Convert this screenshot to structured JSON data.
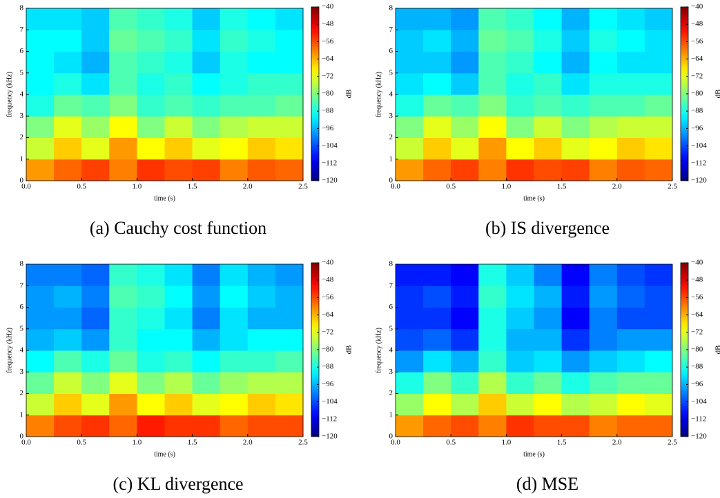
{
  "chart_data": [
    {
      "type": "heatmap",
      "title": "(a) Cauchy cost function",
      "xlabel": "time (s)",
      "ylabel": "frequency (kHz)",
      "colorbar_label": "dB",
      "colormap": "jet",
      "xlim": [
        0,
        2.5
      ],
      "xticks": [
        {
          "value": 0,
          "label": "0.0"
        },
        {
          "value": 0.5,
          "label": "0.5"
        },
        {
          "value": 1,
          "label": "1.0"
        },
        {
          "value": 1.5,
          "label": "1.5"
        },
        {
          "value": 2,
          "label": "2.0"
        },
        {
          "value": 2.5,
          "label": "2.5"
        }
      ],
      "ylim": [
        0,
        8
      ],
      "yticks": [
        0,
        1,
        2,
        3,
        4,
        5,
        6,
        7,
        8
      ],
      "clim": [
        -120,
        -40
      ],
      "cticks": [
        {
          "value": -40,
          "label": "−40"
        },
        {
          "value": -48,
          "label": "−48"
        },
        {
          "value": -56,
          "label": "−56"
        },
        {
          "value": -64,
          "label": "−64"
        },
        {
          "value": -72,
          "label": "−72"
        },
        {
          "value": -80,
          "label": "−80"
        },
        {
          "value": -88,
          "label": "−88"
        },
        {
          "value": -96,
          "label": "−96"
        },
        {
          "value": -104,
          "label": "−104"
        },
        {
          "value": -112,
          "label": "−112"
        },
        {
          "value": -120,
          "label": "−120"
        }
      ],
      "bins_x": [
        0,
        0.25,
        0.5,
        0.75,
        1,
        1.25,
        1.5,
        1.75,
        2,
        2.25,
        2.5
      ],
      "bins_y": [
        0,
        1,
        2,
        3,
        4,
        5,
        6,
        7,
        8
      ],
      "values": [
        [
          -62,
          -58,
          -55,
          -60,
          -54,
          -56,
          -55,
          -60,
          -57,
          -58
        ],
        [
          -74,
          -66,
          -72,
          -62,
          -70,
          -66,
          -72,
          -70,
          -66,
          -68
        ],
        [
          -80,
          -72,
          -78,
          -70,
          -80,
          -74,
          -80,
          -76,
          -74,
          -74
        ],
        [
          -88,
          -82,
          -84,
          -80,
          -86,
          -84,
          -86,
          -84,
          -84,
          -82
        ],
        [
          -90,
          -88,
          -92,
          -84,
          -88,
          -86,
          -90,
          -88,
          -86,
          -86
        ],
        [
          -90,
          -92,
          -96,
          -84,
          -86,
          -88,
          -94,
          -88,
          -90,
          -90
        ],
        [
          -90,
          -90,
          -94,
          -82,
          -84,
          -86,
          -92,
          -86,
          -88,
          -90
        ],
        [
          -92,
          -92,
          -94,
          -84,
          -86,
          -88,
          -94,
          -88,
          -90,
          -92
        ]
      ]
    },
    {
      "type": "heatmap",
      "title": "(b) IS divergence",
      "xlabel": "time (s)",
      "ylabel": "frequency (kHz)",
      "colorbar_label": "dB",
      "colormap": "jet",
      "xlim": [
        0,
        2.5
      ],
      "xticks": [
        {
          "value": 0,
          "label": "0.0"
        },
        {
          "value": 0.5,
          "label": "0.5"
        },
        {
          "value": 1,
          "label": "1.0"
        },
        {
          "value": 1.5,
          "label": "1.5"
        },
        {
          "value": 2,
          "label": "2.0"
        },
        {
          "value": 2.5,
          "label": "2.5"
        }
      ],
      "ylim": [
        0,
        8
      ],
      "yticks": [
        0,
        1,
        2,
        3,
        4,
        5,
        6,
        7,
        8
      ],
      "clim": [
        -120,
        -40
      ],
      "cticks": [
        {
          "value": -40,
          "label": "−40"
        },
        {
          "value": -48,
          "label": "−48"
        },
        {
          "value": -56,
          "label": "−56"
        },
        {
          "value": -64,
          "label": "−64"
        },
        {
          "value": -72,
          "label": "−72"
        },
        {
          "value": -80,
          "label": "−80"
        },
        {
          "value": -88,
          "label": "−88"
        },
        {
          "value": -96,
          "label": "−96"
        },
        {
          "value": -104,
          "label": "−104"
        },
        {
          "value": -112,
          "label": "−112"
        },
        {
          "value": -120,
          "label": "−120"
        }
      ],
      "bins_x": [
        0,
        0.25,
        0.5,
        0.75,
        1,
        1.25,
        1.5,
        1.75,
        2,
        2.25,
        2.5
      ],
      "bins_y": [
        0,
        1,
        2,
        3,
        4,
        5,
        6,
        7,
        8
      ],
      "values": [
        [
          -62,
          -58,
          -55,
          -60,
          -54,
          -56,
          -55,
          -60,
          -57,
          -58
        ],
        [
          -74,
          -66,
          -72,
          -62,
          -70,
          -66,
          -72,
          -70,
          -66,
          -68
        ],
        [
          -80,
          -72,
          -78,
          -70,
          -80,
          -74,
          -80,
          -76,
          -74,
          -74
        ],
        [
          -88,
          -82,
          -84,
          -80,
          -86,
          -84,
          -86,
          -84,
          -84,
          -82
        ],
        [
          -92,
          -90,
          -94,
          -84,
          -88,
          -86,
          -92,
          -88,
          -88,
          -88
        ],
        [
          -94,
          -94,
          -98,
          -84,
          -86,
          -90,
          -96,
          -90,
          -92,
          -92
        ],
        [
          -94,
          -92,
          -96,
          -82,
          -84,
          -88,
          -94,
          -88,
          -90,
          -92
        ],
        [
          -96,
          -96,
          -98,
          -84,
          -86,
          -90,
          -96,
          -90,
          -92,
          -94
        ]
      ]
    },
    {
      "type": "heatmap",
      "title": "(c) KL divergence",
      "xlabel": "time (s)",
      "ylabel": "frequency (kHz)",
      "colorbar_label": "dB",
      "colormap": "jet",
      "xlim": [
        0,
        2.5
      ],
      "xticks": [
        {
          "value": 0,
          "label": "0.0"
        },
        {
          "value": 0.5,
          "label": "0.5"
        },
        {
          "value": 1,
          "label": "1.0"
        },
        {
          "value": 1.5,
          "label": "1.5"
        },
        {
          "value": 2,
          "label": "2.0"
        },
        {
          "value": 2.5,
          "label": "2.5"
        }
      ],
      "ylim": [
        0,
        8
      ],
      "yticks": [
        0,
        1,
        2,
        3,
        4,
        5,
        6,
        7,
        8
      ],
      "clim": [
        -120,
        -40
      ],
      "cticks": [
        {
          "value": -40,
          "label": "−40"
        },
        {
          "value": -48,
          "label": "−48"
        },
        {
          "value": -56,
          "label": "−56"
        },
        {
          "value": -64,
          "label": "−64"
        },
        {
          "value": -72,
          "label": "−72"
        },
        {
          "value": -80,
          "label": "−80"
        },
        {
          "value": -88,
          "label": "−88"
        },
        {
          "value": -96,
          "label": "−96"
        },
        {
          "value": -104,
          "label": "−104"
        },
        {
          "value": -112,
          "label": "−112"
        },
        {
          "value": -120,
          "label": "−120"
        }
      ],
      "bins_x": [
        0,
        0.25,
        0.5,
        0.75,
        1,
        1.25,
        1.5,
        1.75,
        2,
        2.25,
        2.5
      ],
      "bins_y": [
        0,
        1,
        2,
        3,
        4,
        5,
        6,
        7,
        8
      ],
      "values": [
        [
          -60,
          -56,
          -54,
          -58,
          -52,
          -54,
          -54,
          -58,
          -56,
          -56
        ],
        [
          -74,
          -66,
          -72,
          -62,
          -70,
          -66,
          -72,
          -70,
          -66,
          -68
        ],
        [
          -82,
          -74,
          -80,
          -72,
          -80,
          -76,
          -82,
          -78,
          -76,
          -76
        ],
        [
          -90,
          -84,
          -88,
          -82,
          -88,
          -86,
          -90,
          -86,
          -86,
          -84
        ],
        [
          -96,
          -94,
          -98,
          -86,
          -90,
          -90,
          -96,
          -92,
          -90,
          -90
        ],
        [
          -98,
          -98,
          -102,
          -86,
          -88,
          -92,
          -100,
          -92,
          -96,
          -96
        ],
        [
          -98,
          -96,
          -100,
          -84,
          -86,
          -90,
          -98,
          -90,
          -94,
          -96
        ],
        [
          -100,
          -100,
          -102,
          -86,
          -88,
          -92,
          -100,
          -92,
          -96,
          -98
        ]
      ]
    },
    {
      "type": "heatmap",
      "title": "(d) MSE",
      "xlabel": "time (s)",
      "ylabel": "frequency (kHz)",
      "colorbar_label": "dB",
      "colormap": "jet",
      "xlim": [
        0,
        2.5
      ],
      "xticks": [
        {
          "value": 0,
          "label": "0.0"
        },
        {
          "value": 0.5,
          "label": "0.5"
        },
        {
          "value": 1,
          "label": "1.0"
        },
        {
          "value": 1.5,
          "label": "1.5"
        },
        {
          "value": 2,
          "label": "2.0"
        },
        {
          "value": 2.5,
          "label": "2.5"
        }
      ],
      "ylim": [
        0,
        8
      ],
      "yticks": [
        0,
        1,
        2,
        3,
        4,
        5,
        6,
        7,
        8
      ],
      "clim": [
        -120,
        -40
      ],
      "cticks": [
        {
          "value": -40,
          "label": "−40"
        },
        {
          "value": -48,
          "label": "−48"
        },
        {
          "value": -56,
          "label": "−56"
        },
        {
          "value": -64,
          "label": "−64"
        },
        {
          "value": -72,
          "label": "−72"
        },
        {
          "value": -80,
          "label": "−80"
        },
        {
          "value": -88,
          "label": "−88"
        },
        {
          "value": -96,
          "label": "−96"
        },
        {
          "value": -104,
          "label": "−104"
        },
        {
          "value": -112,
          "label": "−112"
        },
        {
          "value": -120,
          "label": "−120"
        }
      ],
      "bins_x": [
        0,
        0.25,
        0.5,
        0.75,
        1,
        1.25,
        1.5,
        1.75,
        2,
        2.25,
        2.5
      ],
      "bins_y": [
        0,
        1,
        2,
        3,
        4,
        5,
        6,
        7,
        8
      ],
      "values": [
        [
          -62,
          -58,
          -56,
          -60,
          -54,
          -56,
          -56,
          -60,
          -58,
          -58
        ],
        [
          -78,
          -70,
          -76,
          -66,
          -74,
          -70,
          -76,
          -74,
          -70,
          -72
        ],
        [
          -88,
          -80,
          -86,
          -76,
          -86,
          -82,
          -88,
          -84,
          -82,
          -82
        ],
        [
          -98,
          -92,
          -96,
          -86,
          -94,
          -92,
          -98,
          -94,
          -92,
          -90
        ],
        [
          -104,
          -102,
          -106,
          -88,
          -96,
          -96,
          -106,
          -100,
          -98,
          -98
        ],
        [
          -106,
          -106,
          -110,
          -88,
          -94,
          -98,
          -110,
          -100,
          -104,
          -104
        ],
        [
          -106,
          -104,
          -108,
          -86,
          -92,
          -96,
          -108,
          -98,
          -102,
          -104
        ],
        [
          -108,
          -108,
          -110,
          -88,
          -94,
          -100,
          -110,
          -100,
          -104,
          -106
        ]
      ]
    }
  ]
}
